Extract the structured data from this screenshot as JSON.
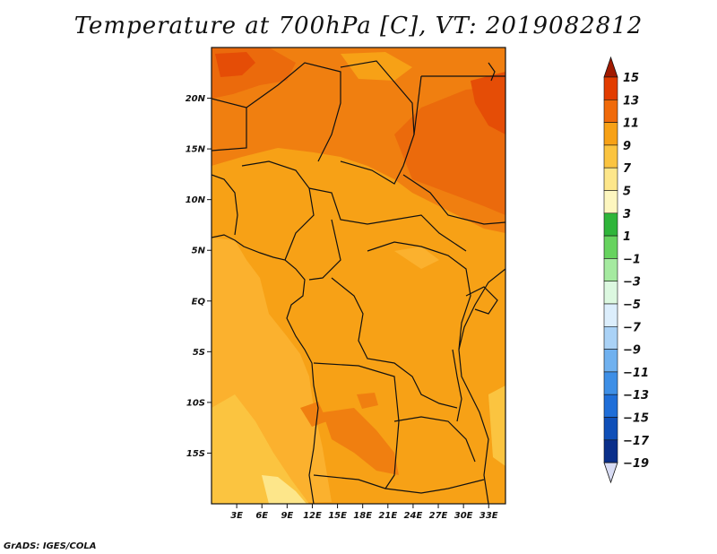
{
  "title": "Temperature at 700hPa [C], VT: 2019082812",
  "footer": "GrADS: IGES/COLA",
  "map": {
    "variable": "Temperature",
    "level": "700hPa",
    "units": "C",
    "valid_time": "2019082812",
    "lon_range": [
      0,
      35
    ],
    "lat_range": [
      -20,
      25
    ],
    "lat_ticks": [
      {
        "value": 20,
        "label": "20N"
      },
      {
        "value": 15,
        "label": "15N"
      },
      {
        "value": 10,
        "label": "10N"
      },
      {
        "value": 5,
        "label": "5N"
      },
      {
        "value": 0,
        "label": "EQ"
      },
      {
        "value": -5,
        "label": "5S"
      },
      {
        "value": -10,
        "label": "10S"
      },
      {
        "value": -15,
        "label": "15S"
      }
    ],
    "lon_ticks": [
      {
        "value": 3,
        "label": "3E"
      },
      {
        "value": 6,
        "label": "6E"
      },
      {
        "value": 9,
        "label": "9E"
      },
      {
        "value": 12,
        "label": "12E"
      },
      {
        "value": 15,
        "label": "15E"
      },
      {
        "value": 18,
        "label": "18E"
      },
      {
        "value": 21,
        "label": "21E"
      },
      {
        "value": 24,
        "label": "24E"
      },
      {
        "value": 27,
        "label": "27E"
      },
      {
        "value": 30,
        "label": "30E"
      },
      {
        "value": 33,
        "label": "33E"
      }
    ]
  },
  "colorbar": {
    "labels": [
      "15",
      "13",
      "11",
      "9",
      "7",
      "5",
      "3",
      "1",
      "−1",
      "−3",
      "−5",
      "−7",
      "−9",
      "−11",
      "−13",
      "−15",
      "−17",
      "−19"
    ],
    "colors": [
      "#a11a00",
      "#e23c00",
      "#f06a0a",
      "#f7a116",
      "#fbc440",
      "#fde68a",
      "#fdf6bf",
      "#2fb53a",
      "#67d35f",
      "#a5eaa0",
      "#dcf8e0",
      "#dceefc",
      "#aad2f6",
      "#70b1ef",
      "#3e8fe6",
      "#1f6ed8",
      "#0f4fb8",
      "#0a2f8a",
      "#0a0c55",
      "#d8dcf4"
    ],
    "top_arrow_color": "#a11a00",
    "bottom_arrow_color": "#d8dcf4"
  },
  "palette": {
    "t7": "#fbc440",
    "t8": "#fbb12e",
    "t9": "#f7a116",
    "t11": "#f07f10",
    "t12": "#eb6a0c",
    "t13": "#e54d06",
    "t15": "#a11a00",
    "t5": "#fde68a"
  }
}
